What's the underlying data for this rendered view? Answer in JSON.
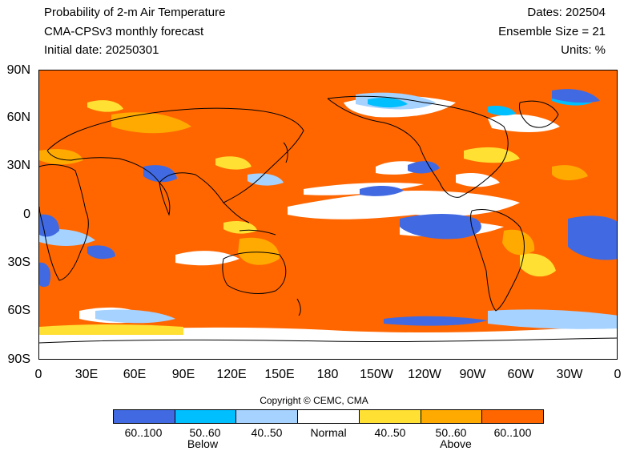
{
  "header": {
    "title": "Probability of 2-m Air Temperature",
    "model": "CMA-CPSv3 monthly forecast",
    "initial": "Initial date: 20250301",
    "dates": "Dates: 202504",
    "ensemble": "Ensemble Size = 21",
    "units": "Units: %"
  },
  "axes": {
    "y_labels": [
      "90N",
      "60N",
      "30N",
      "0",
      "30S",
      "60S",
      "90S"
    ],
    "x_labels": [
      "0",
      "30E",
      "60E",
      "90E",
      "120E",
      "150E",
      "180",
      "150W",
      "120W",
      "90W",
      "60W",
      "30W",
      "0"
    ]
  },
  "copyright": "Copyright © CEMC, CMA",
  "legend": {
    "categories": [
      {
        "label": "60..100",
        "color": "#4169e1"
      },
      {
        "label": "50..60",
        "color": "#00bfff"
      },
      {
        "label": "40..50",
        "color": "#a6d2ff"
      },
      {
        "label": "Normal",
        "color": "#ffffff"
      },
      {
        "label": "40..50",
        "color": "#ffe033"
      },
      {
        "label": "50..60",
        "color": "#ffaa00"
      },
      {
        "label": "60..100",
        "color": "#ff6600"
      }
    ],
    "below": "Below",
    "above": "Above"
  },
  "map_colors": {
    "above_high": "#ff6600",
    "above_mid": "#ffaa00",
    "above_low": "#ffe033",
    "normal": "#ffffff",
    "below_low": "#a6d2ff",
    "below_mid": "#00bfff",
    "below_high": "#4169e1",
    "coastline": "#000000"
  }
}
